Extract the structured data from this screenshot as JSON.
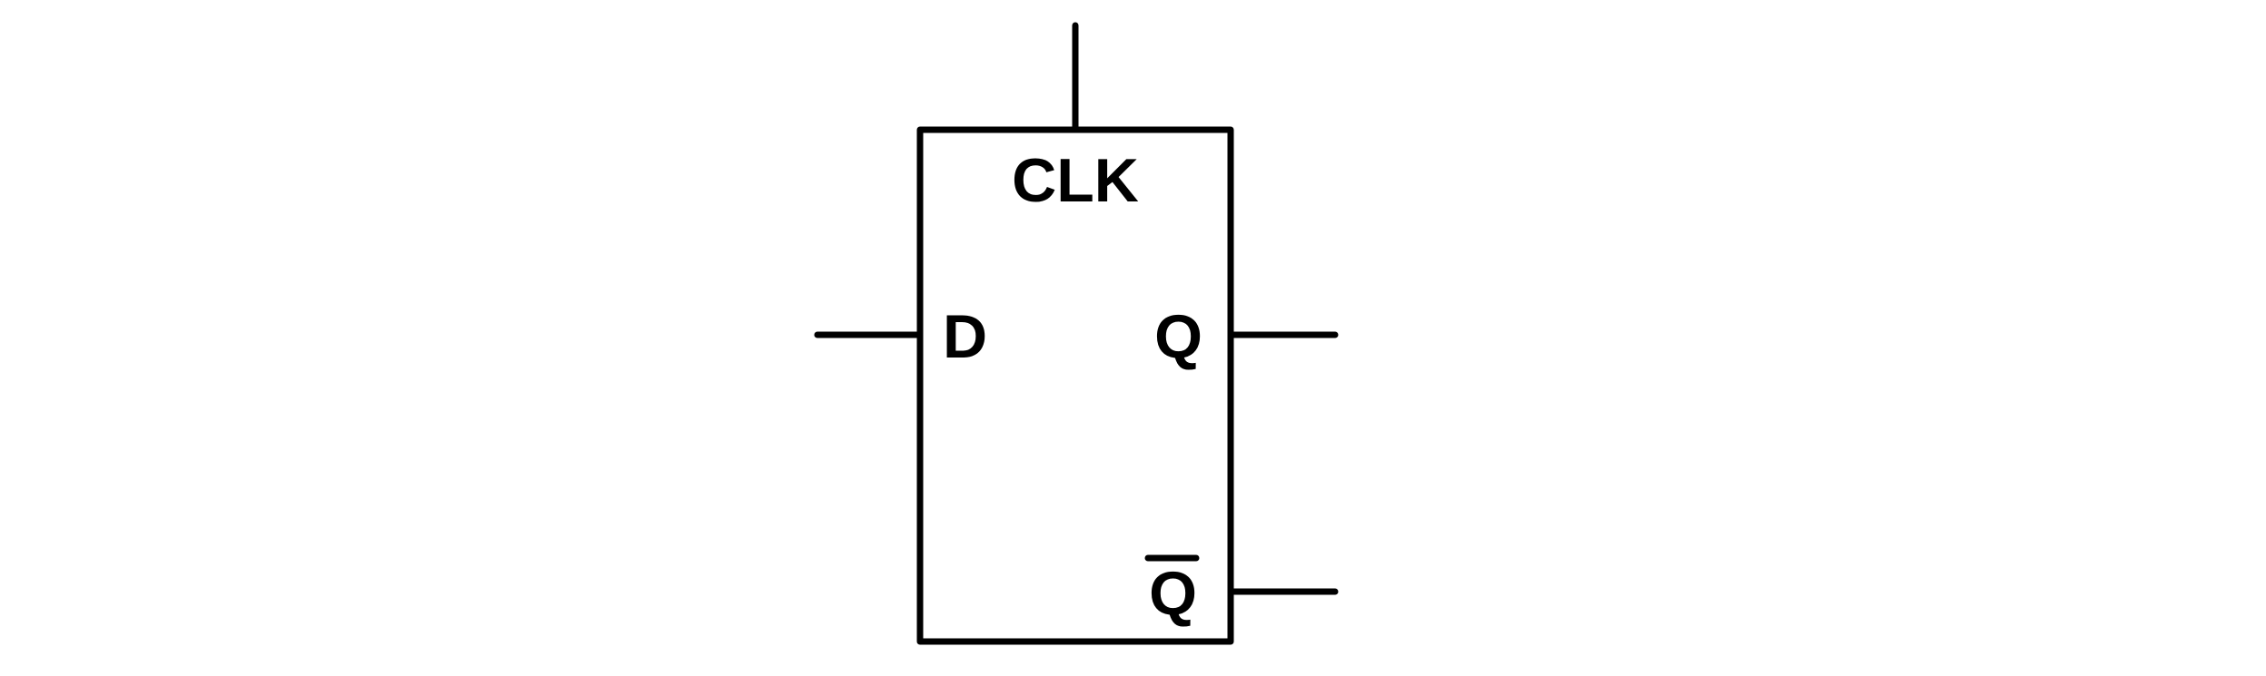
{
  "diagram": {
    "type": "d-flip-flop",
    "labels": {
      "clock": "CLK",
      "data": "D",
      "output": "Q",
      "output_inverted": "Q"
    },
    "colors": {
      "stroke": "#000000",
      "background": "#ffffff"
    }
  }
}
